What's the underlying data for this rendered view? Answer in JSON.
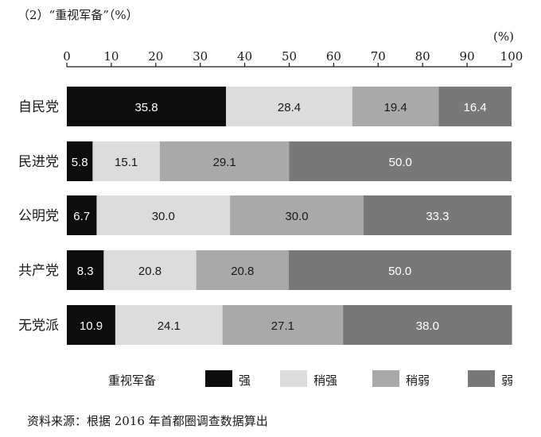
{
  "title": "（2）“重视军备”（%）",
  "unit_label": "(%)",
  "source": "资料来源：根据 2016 年首都圈调查数据算出",
  "legend_title": "重视军备",
  "colors": {
    "强": "#0d0d0d",
    "稍强": "#dcdcdc",
    "稍弱": "#a9a9a9",
    "弱": "#787878"
  },
  "chart_data": {
    "type": "bar",
    "orientation": "horizontal",
    "stacked": true,
    "title": "（2）“重视军备”（%）",
    "xlabel": "(%)",
    "ylabel": "",
    "xlim": [
      0,
      100
    ],
    "x_ticks": [
      "0",
      "10",
      "20",
      "30",
      "40",
      "50",
      "60",
      "70",
      "80",
      "90",
      "100"
    ],
    "categories": [
      "自民党",
      "民进党",
      "公明党",
      "共产党",
      "无党派"
    ],
    "series": [
      {
        "name": "强",
        "values": [
          35.8,
          5.8,
          6.7,
          8.3,
          10.9
        ]
      },
      {
        "name": "稍强",
        "values": [
          28.4,
          15.1,
          30.0,
          20.8,
          24.1
        ]
      },
      {
        "name": "稍弱",
        "values": [
          19.4,
          29.1,
          30.0,
          20.8,
          27.1
        ]
      },
      {
        "name": "弱",
        "values": [
          16.4,
          50.0,
          33.3,
          50.0,
          38.0
        ]
      }
    ],
    "legend_position": "bottom",
    "grid": false
  }
}
